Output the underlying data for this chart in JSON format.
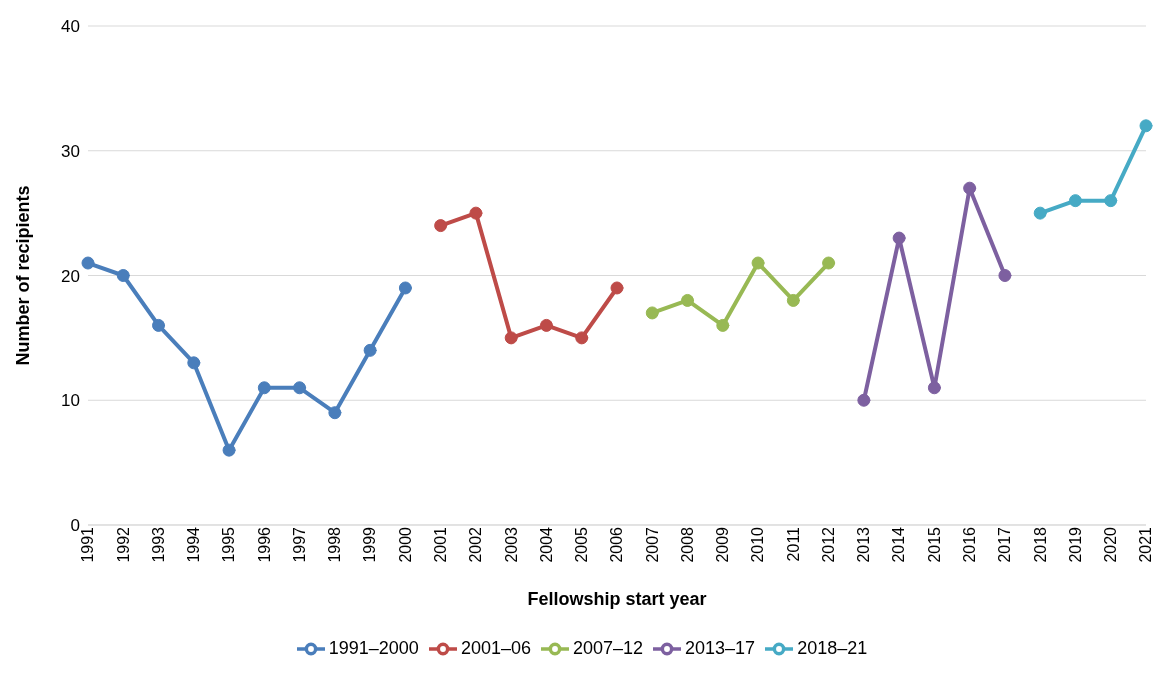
{
  "chart_data": {
    "type": "line",
    "xlabel": "Fellowship start year",
    "ylabel": "Number of recipients",
    "categories": [
      "1991",
      "1992",
      "1993",
      "1994",
      "1995",
      "1996",
      "1997",
      "1998",
      "1999",
      "2000",
      "2001",
      "2002",
      "2003",
      "2004",
      "2005",
      "2006",
      "2007",
      "2008",
      "2009",
      "2010",
      "2011",
      "2012",
      "2013",
      "2014",
      "2015",
      "2016",
      "2017",
      "2018",
      "2019",
      "2020",
      "2021"
    ],
    "series": [
      {
        "name": "1991–2000",
        "color": "#4a7ebb",
        "values": [
          21,
          20,
          16,
          13,
          6,
          11,
          11,
          9,
          14,
          19,
          null,
          null,
          null,
          null,
          null,
          null,
          null,
          null,
          null,
          null,
          null,
          null,
          null,
          null,
          null,
          null,
          null,
          null,
          null,
          null,
          null
        ]
      },
      {
        "name": "2001–06",
        "color": "#be4b48",
        "values": [
          null,
          null,
          null,
          null,
          null,
          null,
          null,
          null,
          null,
          null,
          24,
          25,
          15,
          16,
          15,
          19,
          null,
          null,
          null,
          null,
          null,
          null,
          null,
          null,
          null,
          null,
          null,
          null,
          null,
          null,
          null
        ]
      },
      {
        "name": "2007–12",
        "color": "#98b954",
        "values": [
          null,
          null,
          null,
          null,
          null,
          null,
          null,
          null,
          null,
          null,
          null,
          null,
          null,
          null,
          null,
          null,
          17,
          18,
          16,
          21,
          18,
          21,
          null,
          null,
          null,
          null,
          null,
          null,
          null,
          null,
          null
        ]
      },
      {
        "name": "2013–17",
        "color": "#7d60a0",
        "values": [
          null,
          null,
          null,
          null,
          null,
          null,
          null,
          null,
          null,
          null,
          null,
          null,
          null,
          null,
          null,
          null,
          null,
          null,
          null,
          null,
          null,
          null,
          10,
          23,
          11,
          27,
          20,
          null,
          null,
          null,
          null
        ]
      },
      {
        "name": "2018–21",
        "color": "#46aac5",
        "values": [
          null,
          null,
          null,
          null,
          null,
          null,
          null,
          null,
          null,
          null,
          null,
          null,
          null,
          null,
          null,
          null,
          null,
          null,
          null,
          null,
          null,
          null,
          null,
          null,
          null,
          null,
          null,
          25,
          26,
          26,
          32
        ]
      }
    ],
    "ylim": [
      0,
      40
    ],
    "yticks": [
      0,
      10,
      20,
      30,
      40
    ],
    "grid": "y",
    "legend": "bottom",
    "marker": "circle",
    "line_style": "solid"
  }
}
